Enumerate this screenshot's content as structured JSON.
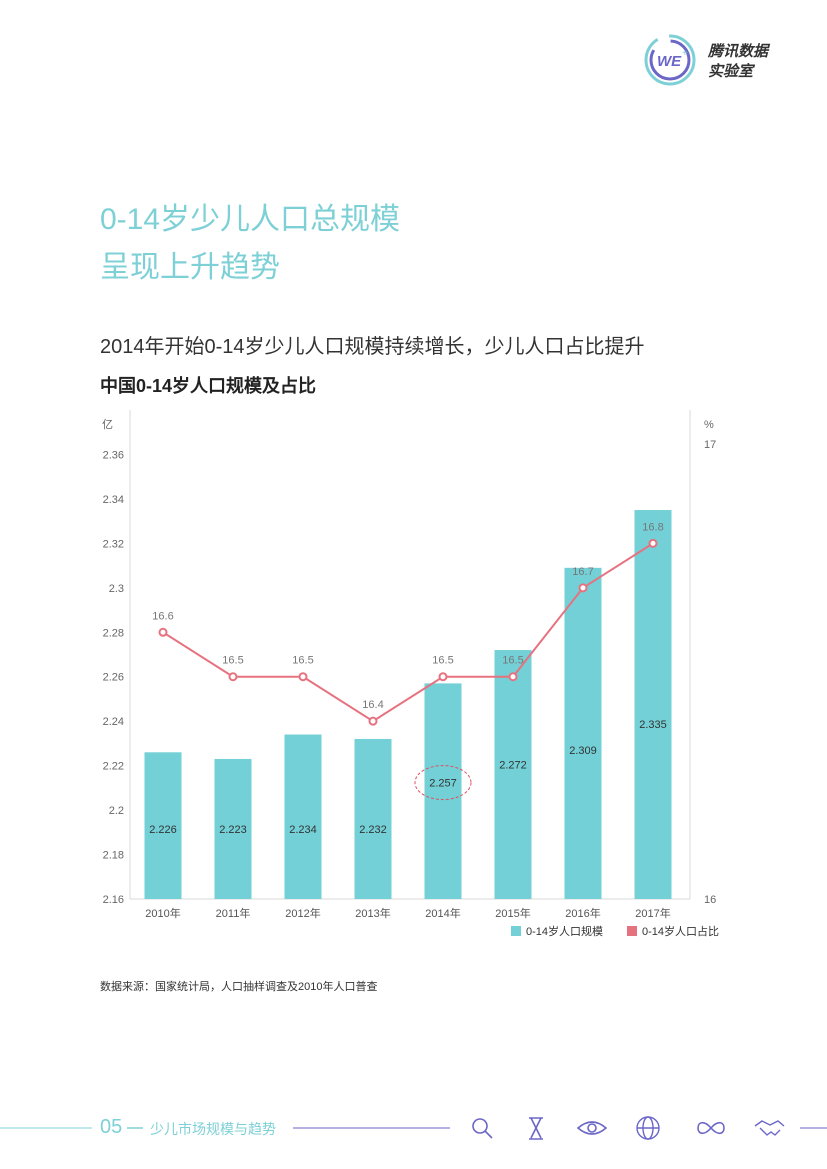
{
  "brand": {
    "line1": "腾讯数据",
    "line2": "实验室",
    "logo_text": "WE"
  },
  "title": {
    "line1": "0-14岁少儿人口总规模",
    "line2": "呈现上升趋势"
  },
  "subtitle": "2014年开始0-14岁少儿人口规模持续增长，少儿人口占比提升",
  "source": "数据来源：国家统计局，人口抽样调查及2010年人口普查",
  "footer": {
    "page": "05",
    "section": "少儿市场规模与趋势",
    "icons": [
      "search-icon",
      "hourglass-icon",
      "eye-icon",
      "globe-icon",
      "infinity-icon",
      "handshake-icon"
    ]
  },
  "colors": {
    "bar": "#72d0d6",
    "line": "#e7727f",
    "accent": "#7dd0d6"
  },
  "chart_data": {
    "type": "bar+line",
    "title": "中国0-14岁人口规模及占比",
    "categories": [
      "2010年",
      "2011年",
      "2012年",
      "2013年",
      "2014年",
      "2015年",
      "2016年",
      "2017年"
    ],
    "series": [
      {
        "name": "0-14岁人口规模",
        "type": "bar",
        "axis": "left",
        "values": [
          2.226,
          2.223,
          2.234,
          2.232,
          2.257,
          2.272,
          2.309,
          2.335
        ]
      },
      {
        "name": "0-14岁人口占比",
        "type": "line",
        "axis": "right",
        "values": [
          16.6,
          16.5,
          16.5,
          16.4,
          16.5,
          16.5,
          16.7,
          16.8
        ]
      }
    ],
    "left_axis": {
      "label": "亿",
      "ylim": [
        2.16,
        2.38
      ],
      "ticks": [
        "2.16",
        "2.18",
        "2.2",
        "2.22",
        "2.24",
        "2.26",
        "2.28",
        "2.3",
        "2.32",
        "2.34",
        "2.36"
      ]
    },
    "right_axis": {
      "label": "%",
      "ticks": [
        "16",
        "17"
      ]
    },
    "highlight": "2.257",
    "legend": [
      "0-14岁人口规模",
      "0-14岁人口占比"
    ],
    "legend_position": "bottom-right"
  }
}
